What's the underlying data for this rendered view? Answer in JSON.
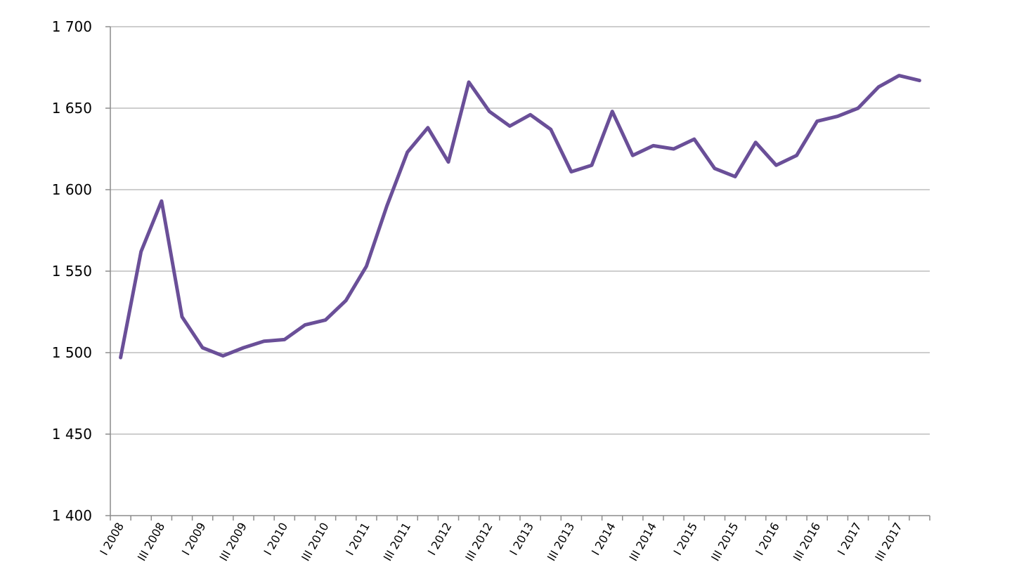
{
  "chart_data": {
    "type": "line",
    "ylim": [
      1400,
      1700
    ],
    "yticks": [
      1400,
      1450,
      1500,
      1550,
      1600,
      1650,
      1700
    ],
    "ytick_labels": [
      "1 400",
      "1 450",
      "1 500",
      "1 550",
      "1 600",
      "1 650",
      "1 700"
    ],
    "grid": true,
    "series_color": "#6a4f98",
    "x_labels_visible": [
      "I 2008",
      "III 2008",
      "I 2009",
      "III 2009",
      "I 2010",
      "III 2010",
      "I 2011",
      "III 2011",
      "I 2012",
      "III 2012",
      "I 2013",
      "III 2013",
      "I 2014",
      "III 2014",
      "I 2015",
      "III 2015",
      "I 2016",
      "III 2016",
      "I 2017",
      "III 2017"
    ],
    "series": [
      {
        "values": [
          1497,
          1562,
          1593,
          1522,
          1503,
          1498,
          1503,
          1507,
          1508,
          1517,
          1520,
          1532,
          1553,
          1590,
          1623,
          1638,
          1617,
          1666,
          1648,
          1639,
          1646,
          1637,
          1611,
          1615,
          1648,
          1621,
          1627,
          1625,
          1631,
          1613,
          1608,
          1629,
          1615,
          1621,
          1642,
          1645,
          1650,
          1663,
          1670,
          1667
        ]
      }
    ]
  }
}
